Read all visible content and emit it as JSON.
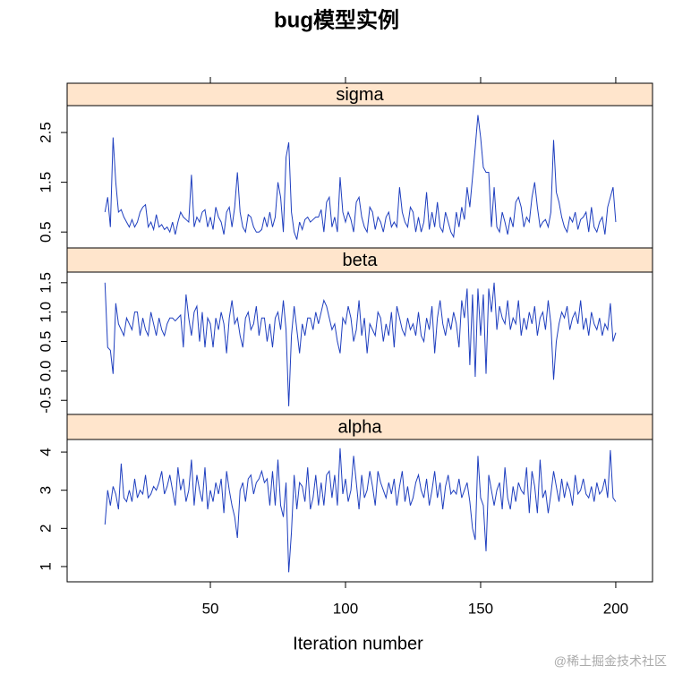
{
  "chart_data": {
    "type": "line",
    "title": "bug模型实例",
    "xlabel": "Iteration number",
    "x": [
      11,
      12,
      13,
      14,
      15,
      16,
      17,
      18,
      19,
      20,
      21,
      22,
      23,
      24,
      25,
      26,
      27,
      28,
      29,
      30,
      31,
      32,
      33,
      34,
      35,
      36,
      37,
      38,
      39,
      40,
      41,
      42,
      43,
      44,
      45,
      46,
      47,
      48,
      49,
      50,
      51,
      52,
      53,
      54,
      55,
      56,
      57,
      58,
      59,
      60,
      61,
      62,
      63,
      64,
      65,
      66,
      67,
      68,
      69,
      70,
      71,
      72,
      73,
      74,
      75,
      76,
      77,
      78,
      79,
      80,
      81,
      82,
      83,
      84,
      85,
      86,
      87,
      88,
      89,
      90,
      91,
      92,
      93,
      94,
      95,
      96,
      97,
      98,
      99,
      100,
      101,
      102,
      103,
      104,
      105,
      106,
      107,
      108,
      109,
      110,
      111,
      112,
      113,
      114,
      115,
      116,
      117,
      118,
      119,
      120,
      121,
      122,
      123,
      124,
      125,
      126,
      127,
      128,
      129,
      130,
      131,
      132,
      133,
      134,
      135,
      136,
      137,
      138,
      139,
      140,
      141,
      142,
      143,
      144,
      145,
      146,
      147,
      148,
      149,
      150,
      151,
      152,
      153,
      154,
      155,
      156,
      157,
      158,
      159,
      160,
      161,
      162,
      163,
      164,
      165,
      166,
      167,
      168,
      169,
      170,
      171,
      172,
      173,
      174,
      175,
      176,
      177,
      178,
      179,
      180,
      181,
      182,
      183,
      184,
      185,
      186,
      187,
      188,
      189,
      190,
      191,
      192,
      193,
      194,
      195,
      196,
      197,
      198,
      199,
      200
    ],
    "xlim": [
      -3,
      213.6
    ],
    "xticks": [
      50,
      100,
      150,
      200
    ],
    "panels": [
      {
        "name": "sigma",
        "color": "#1f3fbf",
        "ylim": [
          0.18,
          3.04
        ],
        "yticks": [
          0.5,
          1.5,
          2.5
        ],
        "values": [
          0.9,
          1.2,
          0.6,
          2.4,
          1.5,
          0.9,
          0.95,
          0.8,
          0.7,
          0.6,
          0.75,
          0.6,
          0.7,
          0.9,
          1.0,
          1.05,
          0.6,
          0.7,
          0.55,
          0.85,
          0.6,
          0.65,
          0.55,
          0.6,
          0.5,
          0.7,
          0.45,
          0.7,
          0.9,
          0.8,
          0.75,
          0.7,
          1.65,
          0.6,
          0.8,
          0.7,
          0.9,
          0.95,
          0.6,
          0.8,
          0.55,
          1.0,
          0.8,
          0.7,
          0.45,
          0.9,
          1.0,
          0.6,
          1.0,
          1.7,
          0.9,
          0.6,
          0.5,
          0.85,
          0.8,
          0.6,
          0.5,
          0.5,
          0.55,
          0.8,
          0.6,
          0.9,
          0.6,
          0.8,
          1.5,
          1.2,
          0.5,
          2.0,
          2.3,
          0.9,
          0.5,
          0.35,
          0.7,
          0.55,
          0.75,
          0.8,
          0.7,
          0.75,
          0.8,
          0.8,
          0.95,
          0.5,
          1.1,
          1.2,
          0.6,
          0.8,
          0.5,
          1.6,
          0.9,
          0.7,
          0.9,
          0.75,
          0.5,
          1.1,
          1.2,
          0.8,
          0.6,
          0.5,
          1.0,
          0.9,
          0.55,
          0.8,
          0.7,
          0.5,
          0.8,
          0.9,
          0.6,
          0.7,
          0.6,
          1.4,
          0.9,
          0.7,
          0.6,
          1.0,
          0.9,
          0.5,
          0.8,
          0.5,
          0.7,
          1.3,
          0.55,
          0.9,
          0.6,
          1.1,
          0.6,
          0.5,
          0.9,
          0.7,
          0.5,
          0.4,
          0.9,
          0.6,
          1.0,
          0.75,
          1.4,
          1.0,
          1.6,
          2.2,
          2.85,
          2.4,
          1.8,
          1.7,
          1.7,
          0.6,
          1.4,
          0.6,
          0.5,
          0.9,
          0.7,
          0.45,
          0.8,
          0.6,
          1.1,
          1.2,
          1.0,
          0.6,
          0.8,
          0.7,
          1.2,
          1.5,
          1.0,
          0.6,
          0.7,
          0.75,
          0.6,
          0.9,
          2.35,
          1.3,
          1.1,
          0.8,
          0.6,
          0.5,
          0.8,
          0.7,
          0.9,
          0.55,
          0.75,
          0.8,
          0.9,
          0.5,
          1.0,
          0.6,
          0.5,
          0.7,
          0.8,
          0.45,
          1.0,
          1.2,
          1.4,
          0.7
        ]
      },
      {
        "name": "beta",
        "color": "#1f3fbf",
        "ylim": [
          -0.74,
          1.68
        ],
        "yticks": [
          -0.5,
          {
            "value": 0,
            "label": "0.0"
          },
          0.5,
          {
            "value": 1,
            "label": "1.0"
          },
          1.5
        ],
        "values": [
          1.5,
          0.4,
          0.35,
          -0.05,
          1.15,
          0.8,
          0.7,
          0.6,
          0.9,
          0.8,
          0.7,
          1.0,
          1.0,
          0.6,
          0.9,
          0.7,
          0.6,
          1.0,
          0.8,
          0.6,
          0.9,
          0.7,
          0.6,
          0.8,
          0.9,
          0.9,
          0.85,
          0.9,
          0.95,
          0.4,
          1.3,
          0.9,
          0.6,
          1.0,
          1.1,
          0.5,
          1.0,
          0.4,
          0.9,
          0.8,
          0.4,
          0.9,
          0.7,
          1.0,
          0.8,
          0.3,
          0.9,
          1.2,
          0.8,
          0.9,
          0.6,
          0.4,
          0.9,
          1.0,
          0.7,
          0.8,
          1.1,
          0.6,
          0.9,
          0.9,
          0.5,
          0.8,
          0.4,
          0.9,
          1.0,
          0.7,
          1.2,
          0.7,
          -0.6,
          0.6,
          1.1,
          0.7,
          0.3,
          0.8,
          0.6,
          0.9,
          0.9,
          0.7,
          1.0,
          0.8,
          1.0,
          1.2,
          1.1,
          0.9,
          0.7,
          0.8,
          0.5,
          0.3,
          0.9,
          0.8,
          1.1,
          0.9,
          0.5,
          0.7,
          1.2,
          0.6,
          0.9,
          0.3,
          0.8,
          0.7,
          0.6,
          1.0,
          0.9,
          0.5,
          0.8,
          0.6,
          1.0,
          0.4,
          1.1,
          0.9,
          0.7,
          0.6,
          0.9,
          0.7,
          0.8,
          0.6,
          1.0,
          0.6,
          0.5,
          0.9,
          0.7,
          1.1,
          0.3,
          0.9,
          1.2,
          0.8,
          0.6,
          0.9,
          0.7,
          1.0,
          0.8,
          0.4,
          1.2,
          0.9,
          1.4,
          0.1,
          1.3,
          -0.1,
          1.4,
          0.6,
          1.3,
          -0.05,
          1.4,
          1.0,
          1.5,
          0.7,
          1.1,
          0.9,
          0.8,
          1.2,
          0.7,
          0.9,
          0.8,
          1.2,
          0.6,
          0.9,
          0.7,
          1.0,
          0.8,
          1.1,
          0.6,
          0.9,
          1.0,
          0.7,
          1.2,
          0.8,
          -0.15,
          0.5,
          0.8,
          1.0,
          0.9,
          1.1,
          0.7,
          0.9,
          1.0,
          0.8,
          1.2,
          0.7,
          0.9,
          0.6,
          1.0,
          0.8,
          0.7,
          0.9,
          0.6,
          0.8,
          0.7,
          1.15,
          0.5,
          0.65
        ]
      },
      {
        "name": "alpha",
        "color": "#1f3fbf",
        "ylim": [
          0.6,
          4.33
        ],
        "yticks": [
          1,
          2,
          3,
          4
        ],
        "values": [
          2.1,
          3.0,
          2.6,
          3.1,
          2.9,
          2.5,
          3.7,
          2.8,
          2.7,
          3.0,
          2.7,
          3.3,
          2.8,
          3.0,
          2.9,
          3.4,
          2.8,
          2.9,
          3.1,
          3.0,
          3.2,
          3.5,
          2.9,
          3.1,
          3.4,
          3.0,
          2.6,
          3.6,
          3.0,
          3.3,
          2.7,
          3.0,
          3.8,
          2.6,
          3.4,
          3.0,
          2.7,
          3.6,
          2.5,
          3.0,
          2.7,
          3.2,
          2.9,
          3.3,
          2.4,
          3.5,
          3.0,
          2.6,
          2.3,
          1.75,
          3.0,
          3.2,
          2.7,
          3.3,
          3.4,
          2.9,
          3.2,
          3.3,
          3.5,
          3.2,
          3.3,
          2.6,
          3.5,
          2.6,
          3.8,
          2.6,
          2.3,
          3.2,
          0.85,
          1.9,
          3.4,
          2.5,
          3.2,
          3.1,
          2.7,
          3.6,
          2.5,
          2.8,
          3.4,
          2.6,
          3.2,
          2.6,
          3.4,
          3.5,
          2.8,
          3.4,
          2.6,
          4.1,
          2.9,
          3.3,
          2.7,
          3.0,
          3.9,
          3.2,
          2.5,
          3.4,
          2.8,
          3.0,
          3.5,
          3.1,
          2.6,
          3.5,
          3.2,
          3.0,
          2.8,
          3.2,
          2.9,
          3.3,
          2.6,
          3.1,
          3.5,
          2.7,
          3.1,
          2.6,
          2.8,
          3.2,
          3.4,
          3.0,
          2.8,
          3.3,
          2.6,
          3.0,
          3.5,
          2.8,
          3.2,
          2.5,
          3.1,
          3.4,
          2.9,
          3.0,
          2.9,
          3.3,
          2.8,
          3.0,
          3.2,
          2.7,
          2.0,
          1.7,
          3.9,
          2.8,
          2.6,
          1.4,
          3.4,
          3.0,
          2.6,
          3.0,
          3.2,
          2.5,
          3.6,
          2.8,
          2.5,
          3.1,
          2.7,
          3.2,
          3.0,
          2.9,
          3.6,
          2.4,
          3.5,
          3.1,
          2.4,
          3.8,
          2.8,
          3.0,
          2.4,
          2.9,
          3.5,
          3.1,
          2.7,
          3.3,
          2.8,
          3.2,
          3.0,
          2.6,
          3.4,
          2.9,
          3.0,
          3.3,
          2.9,
          2.8,
          3.1,
          2.7,
          3.2,
          2.9,
          3.0,
          3.3,
          2.8,
          4.05,
          2.8,
          2.7
        ]
      }
    ]
  },
  "watermark": "@稀土掘金技术社区"
}
